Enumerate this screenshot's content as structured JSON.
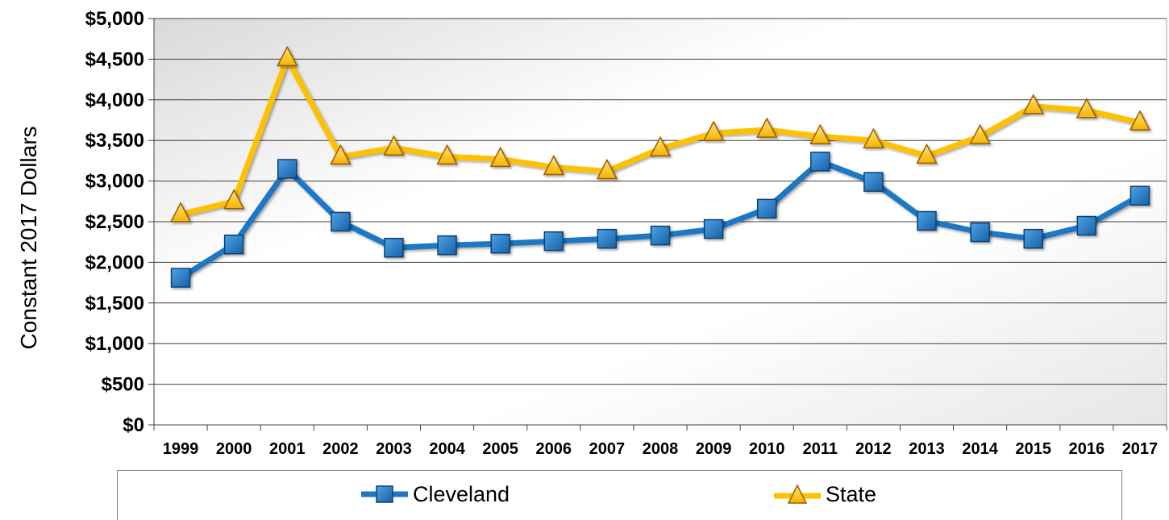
{
  "chart_data": {
    "type": "line",
    "title": "",
    "xlabel": "",
    "ylabel": "Constant 2017 Dollars",
    "ylim": [
      0,
      5000
    ],
    "yticks": [
      "$0",
      "$500",
      "$1,000",
      "$1,500",
      "$2,000",
      "$2,500",
      "$3,000",
      "$3,500",
      "$4,000",
      "$4,500",
      "$5,000"
    ],
    "categories": [
      "1999",
      "2000",
      "2001",
      "2002",
      "2003",
      "2004",
      "2005",
      "2006",
      "2007",
      "2008",
      "2009",
      "2010",
      "2011",
      "2012",
      "2013",
      "2014",
      "2015",
      "2016",
      "2017"
    ],
    "grid": true,
    "legend_position": "bottom",
    "series": [
      {
        "name": "Cleveland",
        "marker": "square",
        "color": "#1f77c4",
        "values": [
          1810,
          2220,
          3150,
          2500,
          2180,
          2210,
          2230,
          2260,
          2290,
          2330,
          2410,
          2660,
          3240,
          2990,
          2510,
          2370,
          2290,
          2450,
          2820
        ]
      },
      {
        "name": "State",
        "marker": "triangle",
        "color": "#ffc000",
        "values": [
          2590,
          2750,
          4510,
          3300,
          3410,
          3300,
          3270,
          3170,
          3120,
          3400,
          3590,
          3630,
          3550,
          3500,
          3310,
          3550,
          3920,
          3870,
          3720
        ]
      }
    ]
  }
}
